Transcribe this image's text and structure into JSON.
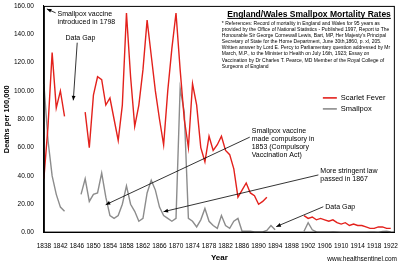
{
  "chart_data": {
    "type": "line",
    "title": "England/Wales Smallpox Mortality Rates",
    "references": "* References: Record of mortality in England and Wales for 95 years as provided by the Office of National Statistics - Published 1997, Report to The Honourable Sir George Cornewall Lewis, Bart, MP, Her Majesty's Principal Secretary of State for the Home Department, June 30th,1860, p. xl, 205. Written answer by Lord E. Percy to Parliamentary question addressed by Mr March, M.P., to the Minister to Health on July 16th, 1923; Essay on Vaccination by Dr Charles T. Pearce, MD Member of the Royal College of Surgeons of England",
    "source": "www.healthsentinel.com",
    "annotations": [
      "Smallpox vaccine introduced in 1798",
      "Data Gap",
      "Smallpox vaccine made compulsory in 1853 (Compulsory Vaccination Act)",
      "More stringent law passed in 1867",
      "Data Gap"
    ],
    "xlabel": "Year",
    "ylabel": "Deaths per 100,000",
    "x": [
      1838,
      1839,
      1840,
      1841,
      1842,
      1843,
      1844,
      1845,
      1846,
      1847,
      1848,
      1849,
      1850,
      1851,
      1852,
      1853,
      1854,
      1855,
      1856,
      1857,
      1858,
      1859,
      1860,
      1861,
      1862,
      1863,
      1864,
      1865,
      1866,
      1867,
      1868,
      1869,
      1870,
      1871,
      1872,
      1873,
      1874,
      1875,
      1876,
      1877,
      1878,
      1879,
      1880,
      1881,
      1882,
      1883,
      1884,
      1885,
      1886,
      1887,
      1888,
      1889,
      1890,
      1891,
      1892,
      1893,
      1894,
      1895,
      1896,
      1897,
      1898,
      1899,
      1900,
      1901,
      1902,
      1903,
      1904,
      1905,
      1906,
      1907,
      1908,
      1909,
      1910,
      1911,
      1912,
      1913,
      1914,
      1915,
      1916,
      1917,
      1918,
      1919,
      1920,
      1921,
      1922
    ],
    "series": [
      {
        "name": "Scarlet Fever",
        "color": "#e3211c",
        "values": [
          38,
          75,
          127,
          88,
          100,
          82,
          null,
          null,
          null,
          null,
          85,
          60,
          97,
          110,
          108,
          90,
          95,
          80,
          65,
          90,
          155,
          110,
          75,
          90,
          115,
          150,
          125,
          100,
          80,
          62,
          100,
          130,
          155,
          115,
          80,
          60,
          105,
          90,
          60,
          50,
          68,
          58,
          62,
          68,
          58,
          55,
          45,
          25,
          30,
          35,
          28,
          26,
          20,
          22,
          25,
          null,
          null,
          null,
          null,
          null,
          null,
          null,
          null,
          12,
          10,
          11,
          9,
          10,
          9,
          8,
          9,
          7,
          6,
          7,
          5,
          6,
          5,
          5,
          4,
          3,
          3,
          4,
          4,
          3,
          3
        ]
      },
      {
        "name": "Smallpox",
        "color": "#8c8c8c",
        "values": [
          105,
          65,
          40,
          27,
          18,
          15,
          null,
          null,
          null,
          27,
          38,
          22,
          27,
          28,
          42,
          25,
          12,
          10,
          12,
          20,
          33,
          20,
          15,
          8,
          10,
          28,
          37,
          30,
          18,
          12,
          10,
          8,
          10,
          102,
          85,
          10,
          8,
          4,
          9,
          17,
          8,
          5,
          3,
          12,
          5,
          3,
          8,
          10,
          1,
          1,
          1,
          0.5,
          0.5,
          0.5,
          1.5,
          5,
          2,
          null,
          null,
          null,
          null,
          null,
          null,
          1,
          7,
          2,
          0.5,
          0.3,
          0.3,
          0.3,
          0.5,
          0.3,
          0.1,
          0.1,
          0.1,
          0.1,
          0.1,
          0.1,
          0.1,
          0.2,
          0.2,
          0.1,
          0.9,
          1,
          0.4
        ]
      }
    ],
    "xlim": [
      1838,
      1923
    ],
    "xticks": [
      1838,
      1842,
      1846,
      1850,
      1854,
      1858,
      1862,
      1866,
      1870,
      1874,
      1878,
      1882,
      1886,
      1890,
      1894,
      1898,
      1902,
      1906,
      1910,
      1914,
      1918,
      1922
    ],
    "ylim": [
      0,
      160
    ],
    "yticks": [
      {
        "value": 0,
        "label": "0.00"
      },
      {
        "value": 20,
        "label": "20.00"
      },
      {
        "value": 40,
        "label": "40.00"
      },
      {
        "value": 60,
        "label": "60.00"
      },
      {
        "value": 80,
        "label": "80.00"
      },
      {
        "value": 100,
        "label": "100.00"
      },
      {
        "value": 120,
        "label": "120.00"
      },
      {
        "value": 140,
        "label": "140.00"
      },
      {
        "value": 160,
        "label": "160.00"
      }
    ],
    "grid": false,
    "legend": "right"
  }
}
